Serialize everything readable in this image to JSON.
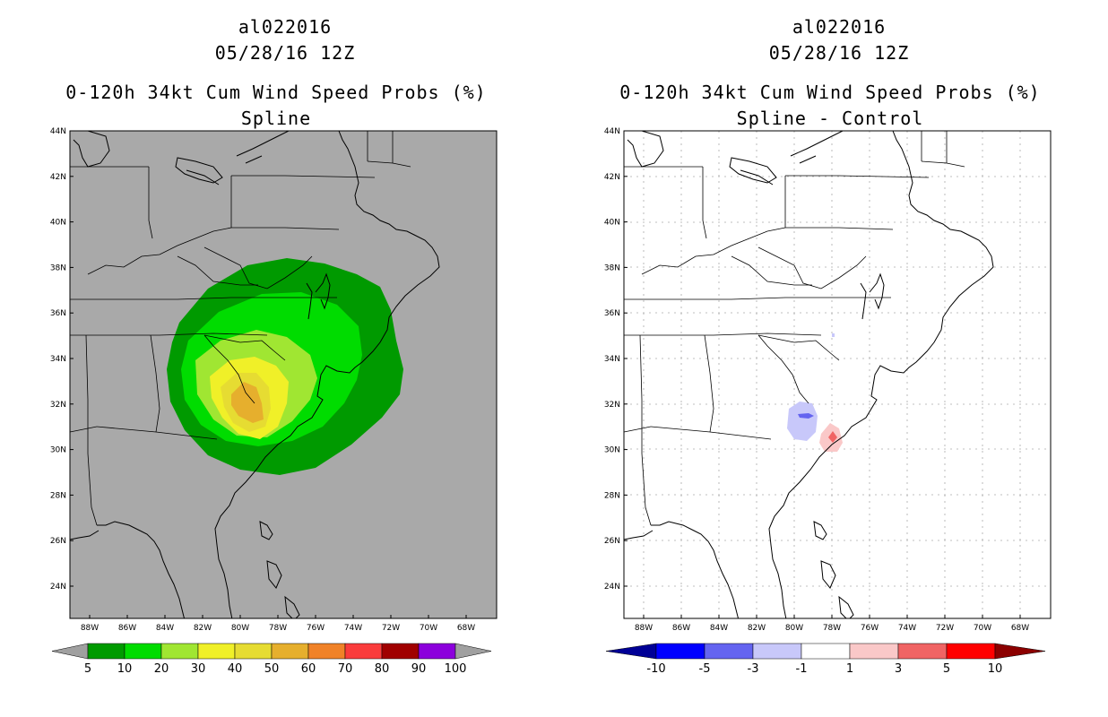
{
  "left_panel": {
    "storm_id": "al022016",
    "date": "05/28/16 12Z",
    "product": "0-120h 34kt Cum Wind Speed Probs (%)",
    "subtitle": "Spline",
    "lat_labels": [
      "44N",
      "42N",
      "40N",
      "38N",
      "36N",
      "34N",
      "32N",
      "30N",
      "28N",
      "26N",
      "24N"
    ],
    "lon_labels": [
      "88W",
      "86W",
      "84W",
      "82W",
      "80W",
      "78W",
      "76W",
      "74W",
      "72W",
      "70W",
      "68W"
    ],
    "colorbar": {
      "labels": [
        "5",
        "10",
        "20",
        "30",
        "40",
        "50",
        "60",
        "70",
        "80",
        "90",
        "100"
      ],
      "colors": [
        "#009a00",
        "#00dc00",
        "#a0e632",
        "#f0f028",
        "#e6dc32",
        "#e6af2d",
        "#f08228",
        "#fa3c3c",
        "#a00000",
        "#8c00dc"
      ],
      "end_color": "#a0a0a0"
    }
  },
  "right_panel": {
    "storm_id": "al022016",
    "date": "05/28/16 12Z",
    "product": "0-120h 34kt Cum Wind Speed Probs (%)",
    "subtitle": "Spline - Control",
    "lat_labels": [
      "44N",
      "42N",
      "40N",
      "38N",
      "36N",
      "34N",
      "32N",
      "30N",
      "28N",
      "26N",
      "24N"
    ],
    "lon_labels": [
      "88W",
      "86W",
      "84W",
      "82W",
      "80W",
      "78W",
      "76W",
      "74W",
      "72W",
      "70W",
      "68W"
    ],
    "colorbar": {
      "labels": [
        "-10",
        "-5",
        "-3",
        "-1",
        "1",
        "3",
        "5",
        "10"
      ],
      "colors": [
        "#0000ff",
        "#6464f0",
        "#c8c8fa",
        "#ffffff",
        "#fac8c8",
        "#f06464",
        "#ff0000"
      ],
      "left_end_color": "#000096",
      "right_end_color": "#8c0000"
    }
  }
}
